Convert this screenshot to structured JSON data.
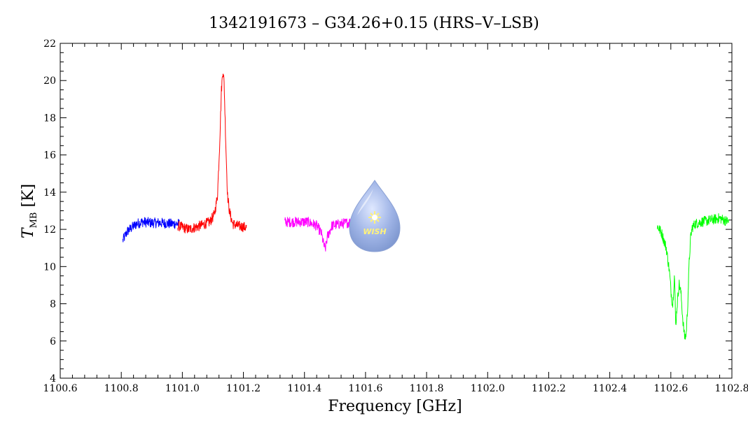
{
  "chart_data": {
    "type": "line",
    "title": "1342191673 – G34.26+0.15 (HRS–V–LSB)",
    "xlabel": "Frequency [GHz]",
    "ylabel": {
      "main": "T",
      "sub": "MB",
      "unit": "[K]"
    },
    "xlim": [
      1100.6,
      1102.8
    ],
    "ylim": [
      4,
      22
    ],
    "xticks": [
      "1100.6",
      "1100.8",
      "1101.0",
      "1101.2",
      "1101.4",
      "1101.6",
      "1101.8",
      "1102.0",
      "1102.2",
      "1102.4",
      "1102.6",
      "1102.8"
    ],
    "yticks": [
      "4",
      "6",
      "8",
      "10",
      "12",
      "14",
      "16",
      "18",
      "20",
      "22"
    ],
    "grid": false,
    "logo": {
      "text": "WISH",
      "colors": {
        "drop": "#8fa8d8",
        "star": "#fff27a"
      }
    },
    "series": [
      {
        "color": "#0000ff",
        "x": [
          1100.805,
          1100.82,
          1100.835,
          1100.85,
          1100.87,
          1100.9,
          1100.93,
          1100.96,
          1100.99
        ],
        "y": [
          11.4,
          11.9,
          12.1,
          12.3,
          12.4,
          12.35,
          12.35,
          12.3,
          12.3
        ]
      },
      {
        "color": "#ff0000",
        "x": [
          1100.985,
          1101.02,
          1101.06,
          1101.09,
          1101.105,
          1101.115,
          1101.122,
          1101.128,
          1101.133,
          1101.137,
          1101.142,
          1101.148,
          1101.155,
          1101.165,
          1101.18,
          1101.21
        ],
        "y": [
          12.2,
          12.0,
          12.2,
          12.4,
          12.8,
          13.8,
          16.5,
          19.5,
          20.6,
          19.8,
          16.8,
          13.8,
          12.9,
          12.3,
          12.2,
          12.1
        ]
      },
      {
        "color": "#ff00ff",
        "x": [
          1101.335,
          1101.37,
          1101.41,
          1101.44,
          1101.455,
          1101.463,
          1101.468,
          1101.475,
          1101.49,
          1101.52,
          1101.56
        ],
        "y": [
          12.4,
          12.4,
          12.4,
          12.2,
          11.8,
          11.2,
          10.9,
          11.6,
          12.2,
          12.3,
          12.4
        ]
      },
      {
        "color": "#00ff00",
        "x": [
          1102.555,
          1102.57,
          1102.585,
          1102.595,
          1102.601,
          1102.606,
          1102.612,
          1102.616,
          1102.62,
          1102.627,
          1102.633,
          1102.639,
          1102.645,
          1102.65,
          1102.655,
          1102.66,
          1102.665,
          1102.67,
          1102.68,
          1102.7,
          1102.73,
          1102.76,
          1102.79
        ],
        "y": [
          12.2,
          11.8,
          11.0,
          9.8,
          8.6,
          7.9,
          9.6,
          6.8,
          7.8,
          9.1,
          8.6,
          7.2,
          6.2,
          6.3,
          7.8,
          10.2,
          11.6,
          12.1,
          12.3,
          12.4,
          12.5,
          12.6,
          12.4
        ]
      }
    ]
  }
}
